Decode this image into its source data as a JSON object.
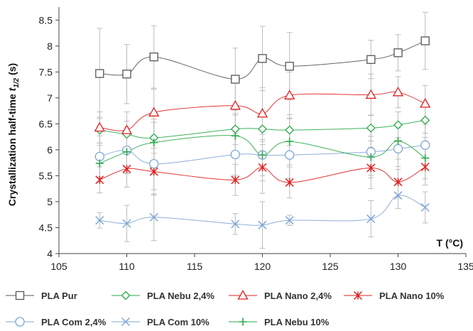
{
  "chart_data": {
    "type": "line",
    "title": "",
    "xlabel": "T (°C)",
    "ylabel": "Crystallization half-time t1/2 (s)",
    "ylabel_parts": {
      "main": "Crystallization half-time ",
      "sym": "t",
      "sub": "1/2",
      "unit": " (s)"
    },
    "xlim": [
      105,
      135
    ],
    "ylim": [
      4,
      8.75
    ],
    "xticks": [
      105,
      110,
      115,
      120,
      125,
      130,
      135
    ],
    "yticks": [
      4,
      4.5,
      5,
      5.5,
      6,
      6.5,
      7,
      7.5,
      8,
      8.5
    ],
    "x": [
      108,
      110,
      112,
      118,
      120,
      122,
      128,
      130,
      132
    ],
    "grid": false,
    "legend_position": "bottom",
    "series": [
      {
        "name": "PLA Pur",
        "color": "#555555",
        "marker": "square",
        "values": [
          7.47,
          7.46,
          7.79,
          7.36,
          7.76,
          7.61,
          7.74,
          7.87,
          8.1
        ],
        "errors": [
          0.87,
          0.57,
          0.6,
          0.6,
          0.62,
          0.65,
          0.37,
          0.35,
          0.55
        ]
      },
      {
        "name": "PLA Nebu 2,4%",
        "color": "#2aa84a",
        "marker": "diamond",
        "values": [
          6.38,
          6.3,
          6.23,
          6.4,
          6.4,
          6.38,
          6.42,
          6.48,
          6.57
        ],
        "errors": [
          0.25,
          0.25,
          0.3,
          0.3,
          0.3,
          0.3,
          0.25,
          0.25,
          0.25
        ]
      },
      {
        "name": "PLA Nano 2,4%",
        "color": "#e02020",
        "marker": "triangle",
        "values": [
          6.43,
          6.38,
          6.72,
          6.85,
          6.7,
          7.05,
          7.06,
          7.11,
          6.89
        ],
        "errors": [
          0.3,
          0.35,
          0.45,
          0.5,
          0.5,
          0.45,
          0.4,
          0.3,
          0.35
        ]
      },
      {
        "name": "PLA Nano 10%",
        "color": "#e02020",
        "marker": "star",
        "values": [
          5.42,
          5.63,
          5.58,
          5.42,
          5.66,
          5.37,
          5.65,
          5.38,
          5.67
        ],
        "errors": [
          0.25,
          0.35,
          0.45,
          0.3,
          0.5,
          0.3,
          0.4,
          0.3,
          0.35
        ]
      },
      {
        "name": "PLA Com 2,4%",
        "color": "#7fa7d4",
        "marker": "circle",
        "values": [
          5.87,
          5.99,
          5.73,
          5.91,
          5.9,
          5.9,
          5.96,
          6.02,
          6.09
        ],
        "errors": [
          0.4,
          0.45,
          0.5,
          0.4,
          0.4,
          0.45,
          0.45,
          0.4,
          0.4
        ]
      },
      {
        "name": "PLA Com 10%",
        "color": "#7fa7d4",
        "marker": "x",
        "values": [
          4.64,
          4.58,
          4.7,
          4.57,
          4.55,
          4.64,
          4.67,
          5.12,
          4.89
        ],
        "errors": [
          0.15,
          0.35,
          0.45,
          0.2,
          0.45,
          0.1,
          0.35,
          0.25,
          0.3
        ]
      },
      {
        "name": "PLA Nebu 10%",
        "color": "#2aa84a",
        "marker": "plus",
        "values": [
          5.74,
          5.96,
          6.14,
          6.27,
          5.9,
          6.16,
          5.86,
          6.17,
          5.84
        ],
        "errors": [
          0.35,
          0.4,
          0.45,
          0.4,
          0.5,
          0.45,
          0.4,
          0.35,
          0.4
        ]
      }
    ],
    "legend_rows": [
      [
        "PLA Pur",
        "PLA Nebu 2,4%",
        "PLA Nano 2,4%",
        "PLA Nano 10%"
      ],
      [
        "PLA Com 2,4%",
        "PLA Com 10%",
        "PLA Nebu 10%"
      ]
    ]
  }
}
